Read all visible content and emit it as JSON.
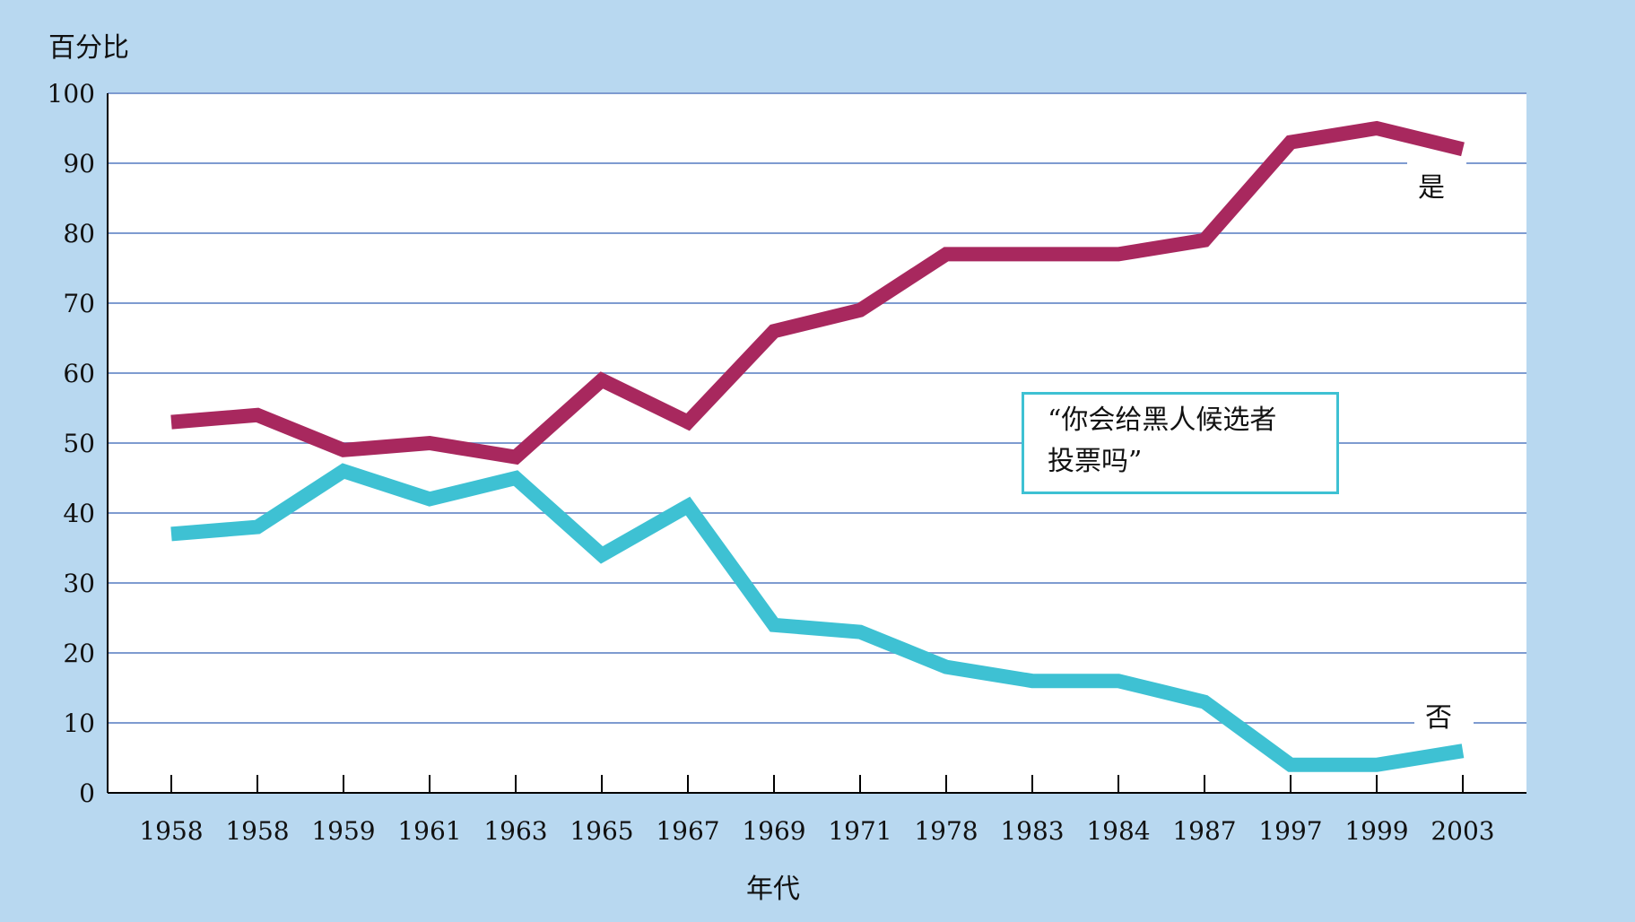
{
  "chart_data": {
    "type": "line",
    "title": "",
    "ylabel": "百分比",
    "xlabel": "年代",
    "ylim": [
      0,
      100
    ],
    "yticks": [
      0,
      10,
      20,
      30,
      40,
      50,
      60,
      70,
      80,
      90,
      100
    ],
    "categories": [
      "1958",
      "1958",
      "1959",
      "1961",
      "1963",
      "1965",
      "1967",
      "1969",
      "1971",
      "1978",
      "1983",
      "1984",
      "1987",
      "1997",
      "1999",
      "2003"
    ],
    "grid": true,
    "series": [
      {
        "name": "是",
        "color": "#a8285e",
        "values": [
          53,
          54,
          49,
          50,
          48,
          59,
          53,
          66,
          69,
          77,
          77,
          77,
          79,
          93,
          95,
          92
        ]
      },
      {
        "name": "否",
        "color": "#3ec1d3",
        "values": [
          37,
          38,
          46,
          42,
          45,
          34,
          41,
          24,
          23,
          18,
          16,
          16,
          13,
          4,
          4,
          6
        ]
      }
    ],
    "annotation": {
      "line1": "“你会给黑人候选者",
      "line2": "投票吗”"
    }
  },
  "colors": {
    "background": "#b8d8f0",
    "plot_background": "#ffffff",
    "gridline": "#7e9bd0",
    "axis": "#000000",
    "annotation_border": "#3ec1d3"
  }
}
